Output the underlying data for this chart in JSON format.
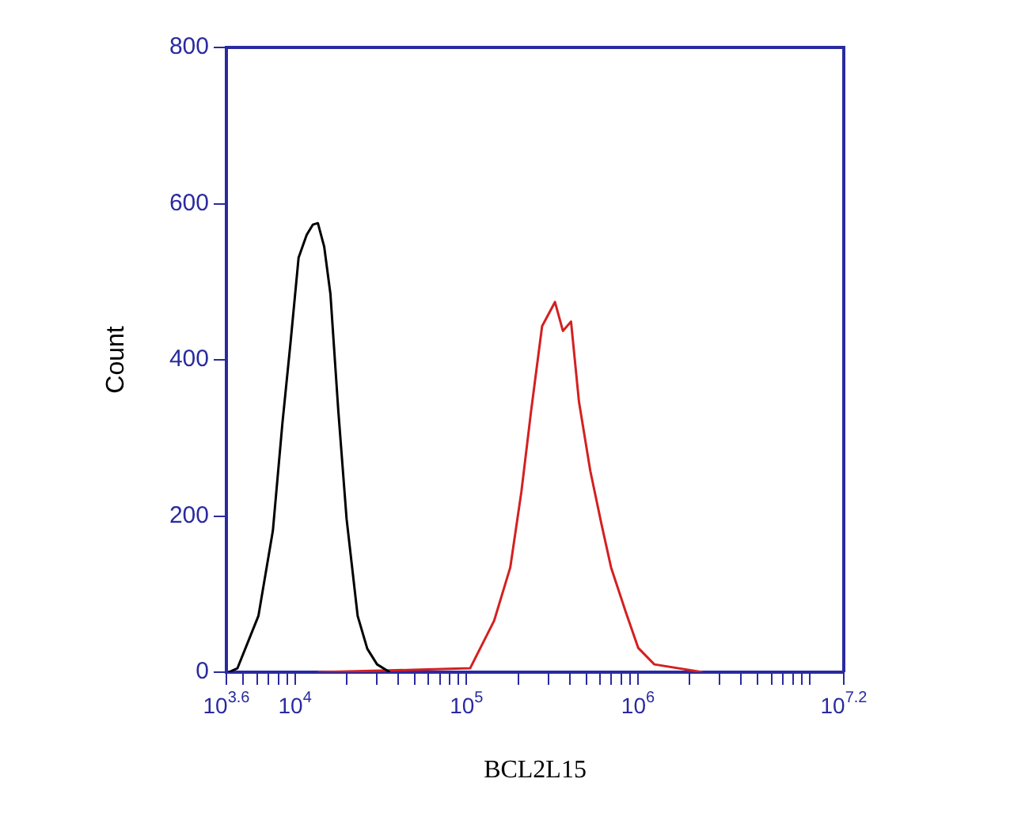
{
  "chart_data": {
    "type": "line",
    "xlabel": "BCL2L15",
    "ylabel": "Count",
    "log": "x",
    "grid": false,
    "legend": false,
    "marker": "none",
    "xlim": [
      3981,
      15848932
    ],
    "ylim": [
      0,
      800
    ],
    "yticks": [
      0,
      200,
      400,
      600,
      800
    ],
    "xticks": [
      {
        "value": 3981,
        "label": "10$^{3.6}$"
      },
      {
        "value": 5000,
        "label": null
      },
      {
        "value": 6000,
        "label": null
      },
      {
        "value": 7000,
        "label": null
      },
      {
        "value": 8000,
        "label": null
      },
      {
        "value": 9000,
        "label": null
      },
      {
        "value": 10000,
        "label": "10$^{4}$"
      },
      {
        "value": 20000,
        "label": null
      },
      {
        "value": 30000,
        "label": null
      },
      {
        "value": 40000,
        "label": null
      },
      {
        "value": 50000,
        "label": null
      },
      {
        "value": 60000,
        "label": null
      },
      {
        "value": 70000,
        "label": null
      },
      {
        "value": 80000,
        "label": null
      },
      {
        "value": 90000,
        "label": null
      },
      {
        "value": 100000,
        "label": "10$^{5}$"
      },
      {
        "value": 200000,
        "label": null
      },
      {
        "value": 300000,
        "label": null
      },
      {
        "value": 400000,
        "label": null
      },
      {
        "value": 500000,
        "label": null
      },
      {
        "value": 600000,
        "label": null
      },
      {
        "value": 700000,
        "label": null
      },
      {
        "value": 800000,
        "label": null
      },
      {
        "value": 900000,
        "label": null
      },
      {
        "value": 1000000,
        "label": "10$^{6}$"
      },
      {
        "value": 2000000,
        "label": null
      },
      {
        "value": 3000000,
        "label": null
      },
      {
        "value": 4000000,
        "label": null
      },
      {
        "value": 5000000,
        "label": null
      },
      {
        "value": 6000000,
        "label": null
      },
      {
        "value": 7000000,
        "label": null
      },
      {
        "value": 8000000,
        "label": null
      },
      {
        "value": 9000000,
        "label": null
      },
      {
        "value": 10000000,
        "label": null
      },
      {
        "value": 15848932,
        "label": "10$^{7.2}$"
      }
    ],
    "series": [
      {
        "color": "#000000",
        "x": [
          4100,
          4620,
          6120,
          7430,
          8450,
          9420,
          10500,
          11700,
          12700,
          13600,
          14800,
          16100,
          17900,
          20000,
          23200,
          26400,
          30100,
          35700
        ],
        "values": [
          0,
          5,
          72,
          181,
          319,
          422,
          531,
          560,
          573,
          575,
          545,
          484,
          334,
          196,
          72,
          30,
          10,
          0
        ]
      },
      {
        "color": "#d42020",
        "x": [
          13600,
          49300,
          105000,
          145000,
          180000,
          209000,
          238000,
          276000,
          328000,
          365000,
          407000,
          453000,
          527000,
          612000,
          697000,
          846000,
          1004000,
          1245000,
          2380000
        ],
        "values": [
          0,
          3,
          5,
          66,
          134,
          231,
          334,
          443,
          474,
          437,
          449,
          346,
          258,
          190,
          134,
          78,
          31,
          10,
          0
        ]
      }
    ]
  }
}
